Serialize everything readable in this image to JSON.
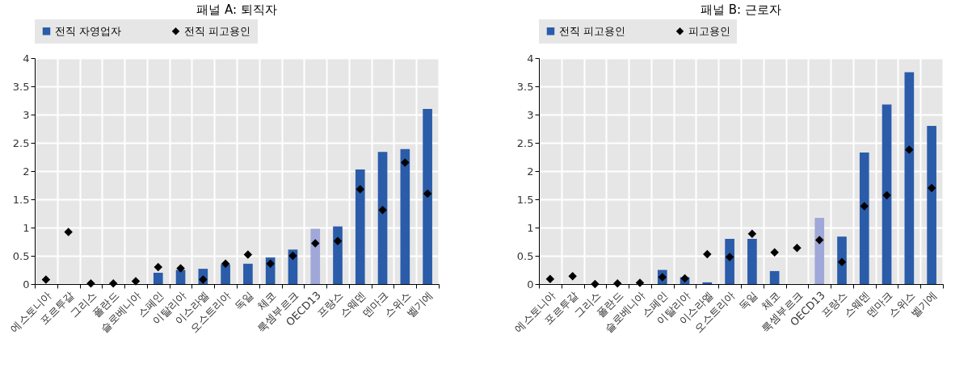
{
  "chart_data": [
    {
      "type": "bar",
      "title": "패널 A: 퇴직자",
      "categories": [
        "에스토니아",
        "포르투갈",
        "그리스",
        "폴란드",
        "슬로베니아",
        "스페인",
        "이탈리아",
        "이스라엘",
        "오스트리아",
        "독일",
        "체코",
        "룩셈부르크",
        "OECD13",
        "프랑스",
        "스웨덴",
        "덴마크",
        "스위스",
        "벨기에"
      ],
      "series": [
        {
          "name": "전직 자영업자",
          "type": "bar",
          "color": "#2a5caa",
          "colors": [
            "#2a5caa",
            "#2a5caa",
            "#2a5caa",
            "#2a5caa",
            "#2a5caa",
            "#2a5caa",
            "#2a5caa",
            "#2a5caa",
            "#2a5caa",
            "#2a5caa",
            "#2a5caa",
            "#2a5caa",
            "#9fa8d8",
            "#2a5caa",
            "#2a5caa",
            "#2a5caa",
            "#2a5caa",
            "#2a5caa"
          ],
          "values": [
            null,
            null,
            null,
            null,
            null,
            0.2,
            0.25,
            0.27,
            0.35,
            0.36,
            0.47,
            0.61,
            0.98,
            1.02,
            2.03,
            2.34,
            2.39,
            3.1
          ]
        },
        {
          "name": "전직 피고용인",
          "type": "scatter",
          "marker": "diamond",
          "color": "#000000",
          "values": [
            0.08,
            0.92,
            0.01,
            0.01,
            0.05,
            0.3,
            0.28,
            0.08,
            0.36,
            0.52,
            0.36,
            0.5,
            0.72,
            0.76,
            1.68,
            1.31,
            2.15,
            1.6
          ]
        }
      ],
      "ylim": [
        0,
        4
      ],
      "yticks": [
        0,
        0.5,
        1,
        1.5,
        2,
        2.5,
        3,
        3.5,
        4
      ],
      "grid": true,
      "legend": "top"
    },
    {
      "type": "bar",
      "title": "패널 B: 근로자",
      "categories": [
        "에스토니아",
        "포르투갈",
        "그리스",
        "폴란드",
        "슬로베니아",
        "스페인",
        "이탈리아",
        "이스라엘",
        "오스트리아",
        "독일",
        "체코",
        "룩셈부르크",
        "OECD13",
        "프랑스",
        "스웨덴",
        "덴마크",
        "스위스",
        "벨기에"
      ],
      "series": [
        {
          "name": "전직 피고용인",
          "type": "bar",
          "color": "#2a5caa",
          "colors": [
            "#2a5caa",
            "#2a5caa",
            "#2a5caa",
            "#2a5caa",
            "#2a5caa",
            "#2a5caa",
            "#2a5caa",
            "#2a5caa",
            "#2a5caa",
            "#2a5caa",
            "#2a5caa",
            "#2a5caa",
            "#9fa8d8",
            "#2a5caa",
            "#2a5caa",
            "#2a5caa",
            "#2a5caa",
            "#2a5caa"
          ],
          "values": [
            null,
            null,
            null,
            null,
            null,
            0.25,
            0.12,
            0.03,
            0.8,
            0.8,
            0.23,
            null,
            1.17,
            0.84,
            2.33,
            3.18,
            3.75,
            2.8
          ]
        },
        {
          "name": "피고용인",
          "type": "scatter",
          "marker": "diamond",
          "color": "#000000",
          "values": [
            0.09,
            0.14,
            0,
            0.01,
            0.02,
            0.12,
            0.1,
            0.53,
            0.48,
            0.89,
            0.56,
            0.64,
            0.78,
            0.39,
            1.38,
            1.57,
            2.38,
            1.7
          ]
        }
      ],
      "ylim": [
        0,
        4
      ],
      "yticks": [
        0,
        0.5,
        1,
        1.5,
        2,
        2.5,
        3,
        3.5,
        4
      ],
      "grid": true,
      "legend": "top"
    }
  ]
}
